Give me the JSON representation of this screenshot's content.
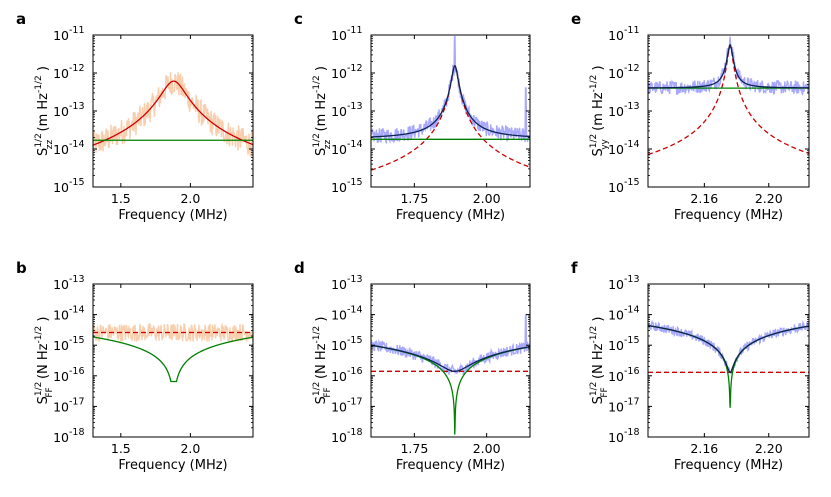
{
  "chart_data": [
    {
      "id": "a",
      "type": "line",
      "letter": "a",
      "xlabel": "Frequency (MHz)",
      "ylabel": {
        "base": "S",
        "sup": "1/2",
        "sub": "zz",
        "units": "(m Hz",
        "units_sup": "-1/2",
        "units_end": ")"
      },
      "xlim": [
        1.3,
        2.45
      ],
      "ylim_exp": [
        -15,
        -11
      ],
      "xticks": [
        1.5,
        2.0
      ],
      "xtick_labels": [
        "1.5",
        "2.0"
      ],
      "yticks_exp": [
        -15,
        -14,
        -13,
        -12,
        -11
      ],
      "ytick_labels": [
        "10",
        "10",
        "10",
        "10",
        "10"
      ],
      "ytick_sups": [
        "-15",
        "-14",
        "-13",
        "-12",
        "-11"
      ],
      "series": [
        {
          "kind": "noise-band",
          "color": "#f7c7a0",
          "model": "lorentz",
          "f0": 1.88,
          "gamma": 0.08,
          "peak": 6e-13,
          "bg": 0,
          "band": 0.35
        },
        {
          "kind": "line",
          "color": "#cc0000",
          "style": "solid",
          "model": "lorentz",
          "f0": 1.88,
          "gamma": 0.08,
          "peak": 6e-13,
          "bg": 0
        },
        {
          "kind": "line",
          "color": "#008000",
          "style": "solid",
          "model": "flat",
          "value": 1.7e-14
        }
      ]
    },
    {
      "id": "c",
      "type": "line",
      "letter": "c",
      "xlabel": "Frequency (MHz)",
      "ylabel": {
        "base": "S",
        "sup": "1/2",
        "sub": "zz",
        "units": "(m Hz",
        "units_sup": "-1/2",
        "units_end": ")"
      },
      "xlim": [
        1.6,
        2.15
      ],
      "ylim_exp": [
        -15,
        -11
      ],
      "xticks": [
        1.75,
        2.0
      ],
      "xtick_labels": [
        "1.75",
        "2.00"
      ],
      "yticks_exp": [
        -15,
        -14,
        -13,
        -12,
        -11
      ],
      "ytick_labels": [
        "10",
        "10",
        "10",
        "10",
        "10"
      ],
      "ytick_sups": [
        "-15",
        "-14",
        "-13",
        "-12",
        "-11"
      ],
      "series": [
        {
          "kind": "noise-band",
          "color": "#9999ff",
          "model": "lorentz",
          "f0": 1.89,
          "gamma": 0.01,
          "peak": 1.5e-12,
          "bg": 1.9e-14,
          "band": 0.2,
          "spikes": [
            [
              1.89,
              9e-12
            ],
            [
              2.135,
              4e-13
            ]
          ]
        },
        {
          "kind": "line",
          "color": "#cc0000",
          "style": "dashed",
          "model": "lorentz",
          "f0": 1.89,
          "gamma": 0.01,
          "peak": 1.5e-12,
          "bg": 0
        },
        {
          "kind": "line",
          "color": "#008000",
          "style": "solid",
          "model": "flat",
          "value": 1.8e-14
        },
        {
          "kind": "line",
          "color": "#0b2550",
          "style": "solid",
          "model": "lorentz",
          "f0": 1.89,
          "gamma": 0.01,
          "peak": 1.5e-12,
          "bg": 1.8e-14
        }
      ]
    },
    {
      "id": "e",
      "type": "line",
      "letter": "e",
      "xlabel": "Frequency (MHz)",
      "ylabel": {
        "base": "S",
        "sup": "1/2",
        "sub": "yy",
        "units": "(m Hz",
        "units_sup": "-1/2",
        "units_end": ")"
      },
      "xlim": [
        2.125,
        2.225
      ],
      "ylim_exp": [
        -15,
        -11
      ],
      "xticks": [
        2.16,
        2.2
      ],
      "xtick_labels": [
        "2.16",
        "2.20"
      ],
      "yticks_exp": [
        -15,
        -14,
        -13,
        -12,
        -11
      ],
      "ytick_labels": [
        "10",
        "10",
        "10",
        "10",
        "10"
      ],
      "ytick_sups": [
        "-15",
        "-14",
        "-13",
        "-12",
        "-11"
      ],
      "series": [
        {
          "kind": "noise-band",
          "color": "#9999ff",
          "model": "lorentz",
          "f0": 2.176,
          "gamma": 0.0015,
          "peak": 6e-12,
          "bg": 4e-13,
          "band": 0.18
        },
        {
          "kind": "line",
          "color": "#cc0000",
          "style": "dashed",
          "model": "lorentz",
          "f0": 2.176,
          "gamma": 0.0015,
          "peak": 5e-12,
          "bg": 0
        },
        {
          "kind": "line",
          "color": "#008000",
          "style": "solid",
          "model": "flat",
          "value": 4e-13
        },
        {
          "kind": "line",
          "color": "#0b2550",
          "style": "solid",
          "model": "lorentz",
          "f0": 2.176,
          "gamma": 0.0015,
          "peak": 5e-12,
          "bg": 4e-13
        }
      ]
    },
    {
      "id": "b",
      "type": "line",
      "letter": "b",
      "xlabel": "Frequency (MHz)",
      "ylabel": {
        "base": "S",
        "sup": "1/2",
        "sub": "FF",
        "units": "(N Hz",
        "units_sup": "-1/2",
        "units_end": ")"
      },
      "xlim": [
        1.3,
        2.45
      ],
      "ylim_exp": [
        -18,
        -13
      ],
      "xticks": [
        1.5,
        2.0
      ],
      "xtick_labels": [
        "1.5",
        "2.0"
      ],
      "yticks_exp": [
        -18,
        -17,
        -16,
        -15,
        -14,
        -13
      ],
      "ytick_labels": [
        "10",
        "10",
        "10",
        "10",
        "10",
        "10"
      ],
      "ytick_sups": [
        "-18",
        "-17",
        "-16",
        "-15",
        "-14",
        "-13"
      ],
      "series": [
        {
          "kind": "noise-band",
          "color": "#f7c7a0",
          "model": "flat",
          "value": 2.6e-15,
          "band": 0.3
        },
        {
          "kind": "line",
          "color": "#cc0000",
          "style": "dashed",
          "model": "flat",
          "value": 2.6e-15
        },
        {
          "kind": "line",
          "color": "#008000",
          "style": "solid",
          "model": "dip",
          "f0": 1.88,
          "scale": 1.6e-15,
          "floor": 6.5e-17
        }
      ]
    },
    {
      "id": "d",
      "type": "line",
      "letter": "d",
      "xlabel": "Frequency (MHz)",
      "ylabel": {
        "base": "S",
        "sup": "1/2",
        "sub": "FF",
        "units": "(N Hz",
        "units_sup": "-1/2",
        "units_end": ")"
      },
      "xlim": [
        1.6,
        2.15
      ],
      "ylim_exp": [
        -18,
        -13
      ],
      "xticks": [
        1.75,
        2.0
      ],
      "xtick_labels": [
        "1.75",
        "2.00"
      ],
      "yticks_exp": [
        -18,
        -17,
        -16,
        -15,
        -14,
        -13
      ],
      "ytick_labels": [
        "10",
        "10",
        "10",
        "10",
        "10",
        "10"
      ],
      "ytick_sups": [
        "-18",
        "-17",
        "-16",
        "-15",
        "-14",
        "-13"
      ],
      "series": [
        {
          "kind": "noise-band",
          "color": "#9999ff",
          "model": "dip-bg",
          "f0": 1.89,
          "scale": 1.7e-15,
          "floor": 0,
          "bg": 1.4e-16,
          "band": 0.18,
          "spikes": [
            [
              2.135,
              1e-14
            ]
          ]
        },
        {
          "kind": "line",
          "color": "#cc0000",
          "style": "dashed",
          "model": "flat",
          "value": 1.4e-16
        },
        {
          "kind": "line",
          "color": "#008000",
          "style": "solid",
          "model": "dip",
          "f0": 1.89,
          "scale": 1.7e-15,
          "floor": 1.2e-18
        },
        {
          "kind": "line",
          "color": "#0b2550",
          "style": "solid",
          "model": "dip-bg",
          "f0": 1.89,
          "scale": 1.7e-15,
          "floor": 0,
          "bg": 1.4e-16
        }
      ]
    },
    {
      "id": "f",
      "type": "line",
      "letter": "f",
      "xlabel": "Frequency (MHz)",
      "ylabel": {
        "base": "S",
        "sup": "1/2",
        "sub": "FF",
        "units": "(N Hz",
        "units_sup": "-1/2",
        "units_end": ")"
      },
      "xlim": [
        2.125,
        2.225
      ],
      "ylim_exp": [
        -18,
        -13
      ],
      "xticks": [
        2.16,
        2.2
      ],
      "xtick_labels": [
        "2.16",
        "2.20"
      ],
      "yticks_exp": [
        -18,
        -17,
        -16,
        -15,
        -14,
        -13
      ],
      "ytick_labels": [
        "10",
        "10",
        "10",
        "10",
        "10",
        "10"
      ],
      "ytick_sups": [
        "-18",
        "-17",
        "-16",
        "-15",
        "-14",
        "-13"
      ],
      "series": [
        {
          "kind": "noise-band",
          "color": "#9999ff",
          "model": "dip-bg",
          "f0": 2.176,
          "scale": 4.3e-14,
          "floor": 0,
          "bg": 1.3e-16,
          "band": 0.15
        },
        {
          "kind": "line",
          "color": "#cc0000",
          "style": "dashed",
          "model": "flat",
          "value": 1.3e-16
        },
        {
          "kind": "line",
          "color": "#008000",
          "style": "solid",
          "model": "dip",
          "f0": 2.176,
          "scale": 4.3e-14,
          "floor": 9e-18
        },
        {
          "kind": "line",
          "color": "#0b2550",
          "style": "solid",
          "model": "dip-bg",
          "f0": 2.176,
          "scale": 4.3e-14,
          "floor": 0,
          "bg": 1.3e-16
        }
      ]
    }
  ]
}
